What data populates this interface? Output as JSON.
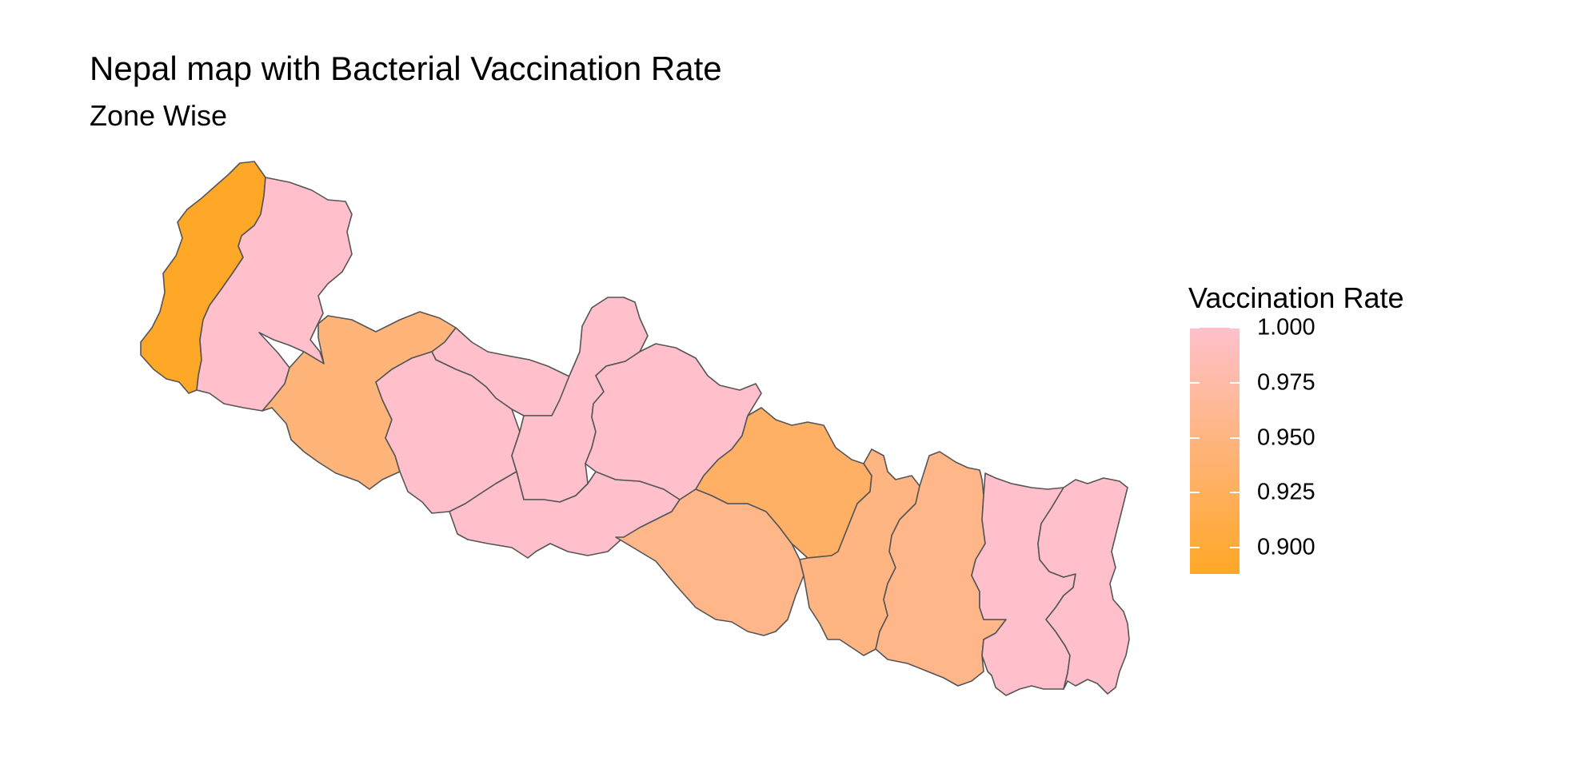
{
  "title": "Nepal map with Bacterial Vaccination Rate",
  "subtitle": "Zone Wise",
  "colors": {
    "low": "#FFA726",
    "high": "#FFC0CB",
    "border": "#555555",
    "background": "#FFFFFF"
  },
  "legend": {
    "title": "Vaccination Rate",
    "min": 0.888,
    "max": 1.0,
    "ticks": [
      "1.000",
      "0.975",
      "0.950",
      "0.925",
      "0.900"
    ]
  },
  "zones": [
    {
      "id": "mahakali",
      "value": 0.888
    },
    {
      "id": "seti",
      "value": 1.0
    },
    {
      "id": "bheri",
      "value": 0.945
    },
    {
      "id": "karnali",
      "value": 1.0
    },
    {
      "id": "rapti",
      "value": 1.0
    },
    {
      "id": "lumbini",
      "value": 1.0
    },
    {
      "id": "dhaulagiri",
      "value": 1.0
    },
    {
      "id": "gandaki",
      "value": 1.0
    },
    {
      "id": "narayani",
      "value": 0.955
    },
    {
      "id": "bagmati",
      "value": 0.93
    },
    {
      "id": "janakpur",
      "value": 0.95
    },
    {
      "id": "sagarmatha",
      "value": 0.955
    },
    {
      "id": "koshi",
      "value": 1.0
    },
    {
      "id": "mechi",
      "value": 1.0
    }
  ]
}
